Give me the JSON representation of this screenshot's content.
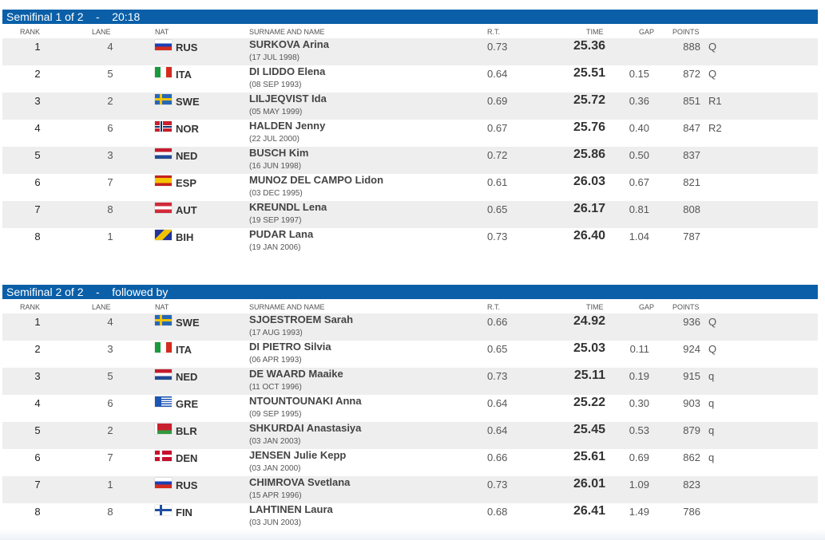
{
  "columns": {
    "rank": "RANK",
    "lane": "LANE",
    "nat": "NAT",
    "name": "SURNAME AND NAME",
    "rt": "R.T.",
    "time": "TIME",
    "gap": "GAP",
    "points": "POINTS"
  },
  "semifinal1": {
    "title": "Semifinal 1 of 2    -    20:18",
    "rows": [
      {
        "rank": "1",
        "lane": "4",
        "flag": "rus",
        "nat": "RUS",
        "name": "SURKOVA Arina",
        "dob": "(17 JUL 1998)",
        "rt": "0.73",
        "time": "25.36",
        "gap": "",
        "points": "888",
        "q": "Q"
      },
      {
        "rank": "2",
        "lane": "5",
        "flag": "ita",
        "nat": "ITA",
        "name": "DI LIDDO Elena",
        "dob": "(08 SEP 1993)",
        "rt": "0.64",
        "time": "25.51",
        "gap": "0.15",
        "points": "872",
        "q": "Q"
      },
      {
        "rank": "3",
        "lane": "2",
        "flag": "swe",
        "nat": "SWE",
        "name": "LILJEQVIST Ida",
        "dob": "(05 MAY 1999)",
        "rt": "0.69",
        "time": "25.72",
        "gap": "0.36",
        "points": "851",
        "q": "R1"
      },
      {
        "rank": "4",
        "lane": "6",
        "flag": "nor",
        "nat": "NOR",
        "name": "HALDEN Jenny",
        "dob": "(22 JUL 2000)",
        "rt": "0.67",
        "time": "25.76",
        "gap": "0.40",
        "points": "847",
        "q": "R2"
      },
      {
        "rank": "5",
        "lane": "3",
        "flag": "ned",
        "nat": "NED",
        "name": "BUSCH Kim",
        "dob": "(16 JUN 1998)",
        "rt": "0.72",
        "time": "25.86",
        "gap": "0.50",
        "points": "837",
        "q": ""
      },
      {
        "rank": "6",
        "lane": "7",
        "flag": "esp",
        "nat": "ESP",
        "name": "MUNOZ DEL CAMPO Lidon",
        "dob": "(03 DEC 1995)",
        "rt": "0.61",
        "time": "26.03",
        "gap": "0.67",
        "points": "821",
        "q": ""
      },
      {
        "rank": "7",
        "lane": "8",
        "flag": "aut",
        "nat": "AUT",
        "name": "KREUNDL Lena",
        "dob": "(19 SEP 1997)",
        "rt": "0.65",
        "time": "26.17",
        "gap": "0.81",
        "points": "808",
        "q": ""
      },
      {
        "rank": "8",
        "lane": "1",
        "flag": "bih",
        "nat": "BIH",
        "name": "PUDAR Lana",
        "dob": "(19 JAN 2006)",
        "rt": "0.73",
        "time": "26.40",
        "gap": "1.04",
        "points": "787",
        "q": ""
      }
    ]
  },
  "semifinal2": {
    "title": "Semifinal 2 of 2    -    followed by",
    "rows": [
      {
        "rank": "1",
        "lane": "4",
        "flag": "swe",
        "nat": "SWE",
        "name": "SJOESTROEM Sarah",
        "dob": "(17 AUG 1993)",
        "rt": "0.66",
        "time": "24.92",
        "gap": "",
        "points": "936",
        "q": "Q"
      },
      {
        "rank": "2",
        "lane": "3",
        "flag": "ita",
        "nat": "ITA",
        "name": "DI PIETRO Silvia",
        "dob": "(06 APR 1993)",
        "rt": "0.65",
        "time": "25.03",
        "gap": "0.11",
        "points": "924",
        "q": "Q"
      },
      {
        "rank": "3",
        "lane": "5",
        "flag": "ned",
        "nat": "NED",
        "name": "DE WAARD Maaike",
        "dob": "(11 OCT 1996)",
        "rt": "0.73",
        "time": "25.11",
        "gap": "0.19",
        "points": "915",
        "q": "q"
      },
      {
        "rank": "4",
        "lane": "6",
        "flag": "gre",
        "nat": "GRE",
        "name": "NTOUNTOUNAKI Anna",
        "dob": "(09 SEP 1995)",
        "rt": "0.64",
        "time": "25.22",
        "gap": "0.30",
        "points": "903",
        "q": "q"
      },
      {
        "rank": "5",
        "lane": "2",
        "flag": "blr",
        "nat": "BLR",
        "name": "SHKURDAI Anastasiya",
        "dob": "(03 JAN 2003)",
        "rt": "0.64",
        "time": "25.45",
        "gap": "0.53",
        "points": "879",
        "q": "q"
      },
      {
        "rank": "6",
        "lane": "7",
        "flag": "den",
        "nat": "DEN",
        "name": "JENSEN Julie Kepp",
        "dob": "(03 JAN 2000)",
        "rt": "0.66",
        "time": "25.61",
        "gap": "0.69",
        "points": "862",
        "q": "q"
      },
      {
        "rank": "7",
        "lane": "1",
        "flag": "rus",
        "nat": "RUS",
        "name": "CHIMROVA Svetlana",
        "dob": "(15 APR 1996)",
        "rt": "0.73",
        "time": "26.01",
        "gap": "1.09",
        "points": "823",
        "q": ""
      },
      {
        "rank": "8",
        "lane": "8",
        "flag": "fin",
        "nat": "FIN",
        "name": "LAHTINEN Laura",
        "dob": "(03 JUN 2003)",
        "rt": "0.68",
        "time": "26.41",
        "gap": "1.49",
        "points": "786",
        "q": ""
      }
    ]
  }
}
